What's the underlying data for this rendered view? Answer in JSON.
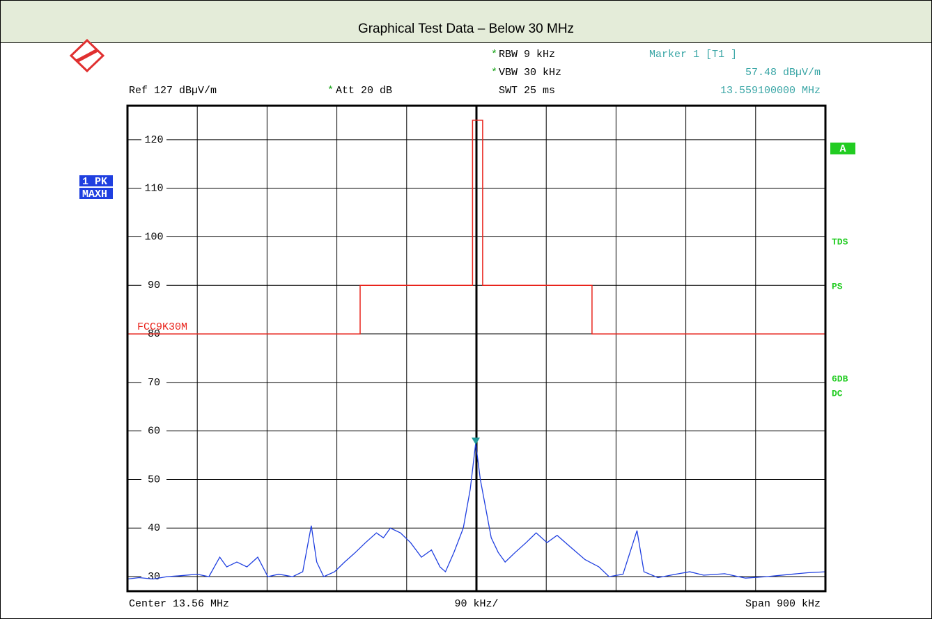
{
  "title": "Graphical Test Data – Below 30 MHz",
  "header": {
    "ref": "Ref  127 dBµV/m",
    "att": "Att  20 dB",
    "rbw": "RBW  9 kHz",
    "vbw": "VBW  30 kHz",
    "swt": "SWT  25 ms",
    "star": "*"
  },
  "footer": {
    "center": "Center  13.56 MHz",
    "per_div": "90 kHz/",
    "span": "Span  900 kHz"
  },
  "left_labels": [
    "1 PK",
    "MAXH"
  ],
  "right_labels": [
    "A",
    "TDS",
    "PS",
    "6DB",
    "DC"
  ],
  "chart_data": {
    "type": "line",
    "ylim": [
      27,
      127
    ],
    "yticks": [
      30,
      40,
      50,
      60,
      70,
      80,
      90,
      100,
      110,
      120
    ],
    "xlim": [
      13.11,
      14.01
    ],
    "x_divisions": 10,
    "grid": true,
    "limit_line": {
      "name": "FCC9K30M",
      "color": "#e8231b",
      "x": [
        13.11,
        13.41,
        13.41,
        13.555,
        13.555,
        13.568,
        13.568,
        13.709,
        13.709,
        14.01
      ],
      "values": [
        80,
        80,
        90,
        90,
        124,
        124,
        90,
        90,
        80,
        80
      ]
    },
    "series": [
      {
        "color": "#1f3fe0",
        "x": [
          13.11,
          13.125,
          13.143,
          13.161,
          13.179,
          13.2,
          13.215,
          13.229,
          13.238,
          13.251,
          13.264,
          13.278,
          13.291,
          13.305,
          13.323,
          13.336,
          13.347,
          13.354,
          13.363,
          13.377,
          13.39,
          13.404,
          13.417,
          13.431,
          13.44,
          13.449,
          13.462,
          13.475,
          13.489,
          13.502,
          13.513,
          13.52,
          13.531,
          13.543,
          13.552,
          13.559,
          13.565,
          13.572,
          13.579,
          13.588,
          13.597,
          13.61,
          13.624,
          13.637,
          13.651,
          13.664,
          13.682,
          13.7,
          13.718,
          13.731,
          13.749,
          13.767,
          13.776,
          13.794,
          13.817,
          13.835,
          13.853,
          13.88,
          13.907,
          13.934,
          13.96,
          13.987,
          14.01
        ],
        "values": [
          29.5,
          29.8,
          29.5,
          30,
          30.2,
          30.5,
          30,
          34,
          32,
          33,
          32,
          34,
          30,
          30.5,
          30,
          31,
          40.5,
          33,
          30,
          31,
          33,
          35,
          37,
          39,
          38,
          40,
          39,
          37,
          34,
          35.5,
          32,
          31,
          35,
          40,
          48,
          57.5,
          50,
          44,
          38,
          35,
          33,
          35,
          37,
          39,
          37,
          38.5,
          36,
          33.5,
          32,
          30,
          30.5,
          39.5,
          31,
          29.8,
          30.5,
          31,
          30.3,
          30.6,
          29.7,
          30,
          30.4,
          30.8,
          31
        ]
      }
    ],
    "marker": {
      "label": "Marker 1 [T1 ]",
      "x": 13.5591,
      "value": 57.48,
      "value_label": "57.48 dBµV/m",
      "x_label": "13.559100000 MHz",
      "color": "#1f9a9a"
    }
  }
}
